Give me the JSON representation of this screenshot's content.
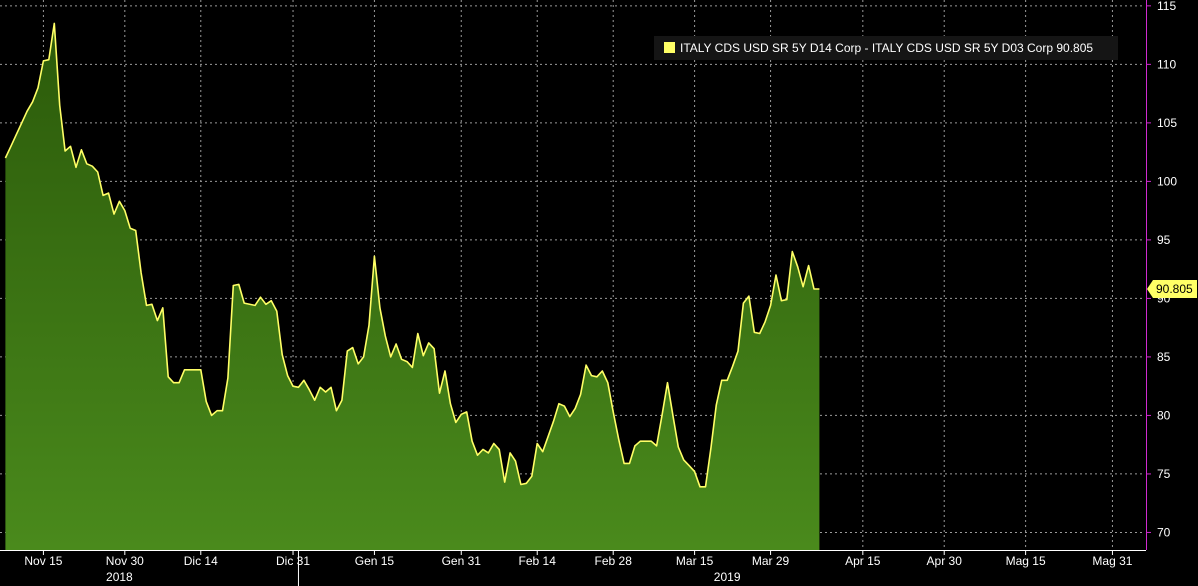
{
  "chart_data": {
    "type": "area",
    "legend_position": "top-right",
    "grid": true,
    "yticks": [
      70,
      75,
      80,
      85,
      90,
      95,
      100,
      105,
      110,
      115
    ],
    "ylim": [
      68.5,
      115.5
    ],
    "xticks": [
      {
        "label": "Nov 15",
        "date": "2018-11-15"
      },
      {
        "label": "Nov 30",
        "date": "2018-11-30"
      },
      {
        "label": "Dic 14",
        "date": "2018-12-14"
      },
      {
        "label": "Dic 31",
        "date": "2018-12-31"
      },
      {
        "label": "Gen 15",
        "date": "2019-01-15"
      },
      {
        "label": "Gen 31",
        "date": "2019-01-31"
      },
      {
        "label": "Feb 14",
        "date": "2019-02-14"
      },
      {
        "label": "Feb 28",
        "date": "2019-02-28"
      },
      {
        "label": "Mar 15",
        "date": "2019-03-15"
      },
      {
        "label": "Mar 29",
        "date": "2019-03-29"
      },
      {
        "label": "Apr 15",
        "date": "2019-04-15"
      },
      {
        "label": "Apr 30",
        "date": "2019-04-30"
      },
      {
        "label": "Mag 15",
        "date": "2019-05-15"
      },
      {
        "label": "Mag 31",
        "date": "2019-05-31"
      }
    ],
    "year_labels": [
      {
        "label": "2018",
        "date": "2018-11-29"
      },
      {
        "label": "2019",
        "date": "2019-03-21"
      }
    ],
    "year_divider_date": "2019-01-01",
    "xlim": [
      "2018-11-07",
      "2019-06-06"
    ],
    "last_value_label": "90.805",
    "series": [
      {
        "name": "ITALY CDS USD SR 5Y D14 Corp - ITALY CDS USD SR 5Y D03 Corp 90.805",
        "color": "#ffff66",
        "fill_top": "#2b5a0a",
        "fill_bottom": "#4a8a1c",
        "points": [
          [
            "2018-11-08",
            102.0
          ],
          [
            "2018-11-09",
            103.0
          ],
          [
            "2018-11-10",
            104.0
          ],
          [
            "2018-11-11",
            105.0
          ],
          [
            "2018-11-12",
            106.0
          ],
          [
            "2018-11-13",
            106.8
          ],
          [
            "2018-11-14",
            108.0
          ],
          [
            "2018-11-15",
            110.3
          ],
          [
            "2018-11-16",
            110.4
          ],
          [
            "2018-11-17",
            113.5
          ],
          [
            "2018-11-18",
            106.5
          ],
          [
            "2018-11-19",
            102.6
          ],
          [
            "2018-11-20",
            103.0
          ],
          [
            "2018-11-21",
            101.2
          ],
          [
            "2018-11-22",
            102.7
          ],
          [
            "2018-11-23",
            101.5
          ],
          [
            "2018-11-24",
            101.3
          ],
          [
            "2018-11-25",
            100.8
          ],
          [
            "2018-11-26",
            98.8
          ],
          [
            "2018-11-27",
            99.0
          ],
          [
            "2018-11-28",
            97.2
          ],
          [
            "2018-11-29",
            98.3
          ],
          [
            "2018-11-30",
            97.5
          ],
          [
            "2018-12-01",
            96.0
          ],
          [
            "2018-12-02",
            95.8
          ],
          [
            "2018-12-03",
            92.2
          ],
          [
            "2018-12-04",
            89.4
          ],
          [
            "2018-12-05",
            89.5
          ],
          [
            "2018-12-06",
            88.1
          ],
          [
            "2018-12-07",
            89.2
          ],
          [
            "2018-12-08",
            83.3
          ],
          [
            "2018-12-09",
            82.8
          ],
          [
            "2018-12-10",
            82.8
          ],
          [
            "2018-12-11",
            83.9
          ],
          [
            "2018-12-12",
            83.9
          ],
          [
            "2018-12-14",
            83.9
          ],
          [
            "2018-12-15",
            81.2
          ],
          [
            "2018-12-16",
            80.0
          ],
          [
            "2018-12-17",
            80.4
          ],
          [
            "2018-12-18",
            80.4
          ],
          [
            "2018-12-19",
            83.2
          ],
          [
            "2018-12-20",
            91.1
          ],
          [
            "2018-12-21",
            91.2
          ],
          [
            "2018-12-22",
            89.6
          ],
          [
            "2018-12-24",
            89.4
          ],
          [
            "2018-12-25",
            90.1
          ],
          [
            "2018-12-26",
            89.5
          ],
          [
            "2018-12-27",
            89.8
          ],
          [
            "2018-12-28",
            88.9
          ],
          [
            "2018-12-29",
            85.2
          ],
          [
            "2018-12-30",
            83.4
          ],
          [
            "2018-12-31",
            82.5
          ],
          [
            "2019-01-01",
            82.4
          ],
          [
            "2019-01-02",
            83.0
          ],
          [
            "2019-01-03",
            82.2
          ],
          [
            "2019-01-04",
            81.3
          ],
          [
            "2019-01-05",
            82.4
          ],
          [
            "2019-01-06",
            82.0
          ],
          [
            "2019-01-07",
            82.4
          ],
          [
            "2019-01-08",
            80.4
          ],
          [
            "2019-01-09",
            81.3
          ],
          [
            "2019-01-10",
            85.5
          ],
          [
            "2019-01-11",
            85.8
          ],
          [
            "2019-01-12",
            84.4
          ],
          [
            "2019-01-13",
            85.0
          ],
          [
            "2019-01-14",
            87.7
          ],
          [
            "2019-01-15",
            93.6
          ],
          [
            "2019-01-16",
            89.2
          ],
          [
            "2019-01-17",
            86.8
          ],
          [
            "2019-01-18",
            85.0
          ],
          [
            "2019-01-19",
            86.1
          ],
          [
            "2019-01-20",
            84.8
          ],
          [
            "2019-01-21",
            84.6
          ],
          [
            "2019-01-22",
            84.1
          ],
          [
            "2019-01-23",
            87.0
          ],
          [
            "2019-01-24",
            85.1
          ],
          [
            "2019-01-25",
            86.2
          ],
          [
            "2019-01-26",
            85.7
          ],
          [
            "2019-01-27",
            81.9
          ],
          [
            "2019-01-28",
            83.8
          ],
          [
            "2019-01-29",
            81.0
          ],
          [
            "2019-01-30",
            79.4
          ],
          [
            "2019-01-31",
            80.1
          ],
          [
            "2019-02-01",
            80.3
          ],
          [
            "2019-02-02",
            77.8
          ],
          [
            "2019-02-03",
            76.6
          ],
          [
            "2019-02-04",
            77.1
          ],
          [
            "2019-02-05",
            76.8
          ],
          [
            "2019-02-06",
            77.6
          ],
          [
            "2019-02-07",
            77.1
          ],
          [
            "2019-02-08",
            74.3
          ],
          [
            "2019-02-09",
            76.8
          ],
          [
            "2019-02-10",
            76.1
          ],
          [
            "2019-02-11",
            74.1
          ],
          [
            "2019-02-12",
            74.2
          ],
          [
            "2019-02-13",
            74.8
          ],
          [
            "2019-02-14",
            77.6
          ],
          [
            "2019-02-15",
            76.9
          ],
          [
            "2019-02-16",
            78.2
          ],
          [
            "2019-02-17",
            79.5
          ],
          [
            "2019-02-18",
            81.0
          ],
          [
            "2019-02-19",
            80.8
          ],
          [
            "2019-02-20",
            79.9
          ],
          [
            "2019-02-21",
            80.6
          ],
          [
            "2019-02-22",
            81.8
          ],
          [
            "2019-02-23",
            84.3
          ],
          [
            "2019-02-24",
            83.4
          ],
          [
            "2019-02-25",
            83.3
          ],
          [
            "2019-02-26",
            83.8
          ],
          [
            "2019-02-27",
            82.8
          ],
          [
            "2019-02-28",
            80.3
          ],
          [
            "2019-03-01",
            78.0
          ],
          [
            "2019-03-02",
            75.9
          ],
          [
            "2019-03-03",
            75.9
          ],
          [
            "2019-03-04",
            77.4
          ],
          [
            "2019-03-05",
            77.8
          ],
          [
            "2019-03-06",
            77.8
          ],
          [
            "2019-03-07",
            77.8
          ],
          [
            "2019-03-08",
            77.4
          ],
          [
            "2019-03-09",
            80.0
          ],
          [
            "2019-03-10",
            82.8
          ],
          [
            "2019-03-11",
            80.0
          ],
          [
            "2019-03-12",
            77.3
          ],
          [
            "2019-03-13",
            76.2
          ],
          [
            "2019-03-14",
            75.7
          ],
          [
            "2019-03-15",
            75.2
          ],
          [
            "2019-03-16",
            73.9
          ],
          [
            "2019-03-17",
            73.9
          ],
          [
            "2019-03-18",
            77.2
          ],
          [
            "2019-03-19",
            80.9
          ],
          [
            "2019-03-20",
            83.0
          ],
          [
            "2019-03-21",
            83.0
          ],
          [
            "2019-03-22",
            84.2
          ],
          [
            "2019-03-23",
            85.5
          ],
          [
            "2019-03-24",
            89.6
          ],
          [
            "2019-03-25",
            90.2
          ],
          [
            "2019-03-26",
            87.1
          ],
          [
            "2019-03-27",
            87.0
          ],
          [
            "2019-03-28",
            88.0
          ],
          [
            "2019-03-29",
            89.4
          ],
          [
            "2019-03-30",
            92.0
          ],
          [
            "2019-03-31",
            89.8
          ],
          [
            "2019-04-01",
            89.9
          ],
          [
            "2019-04-02",
            94.0
          ],
          [
            "2019-04-03",
            92.7
          ],
          [
            "2019-04-04",
            91.0
          ],
          [
            "2019-04-05",
            92.8
          ],
          [
            "2019-04-06",
            90.8
          ],
          [
            "2019-04-07",
            90.805
          ]
        ]
      }
    ]
  }
}
